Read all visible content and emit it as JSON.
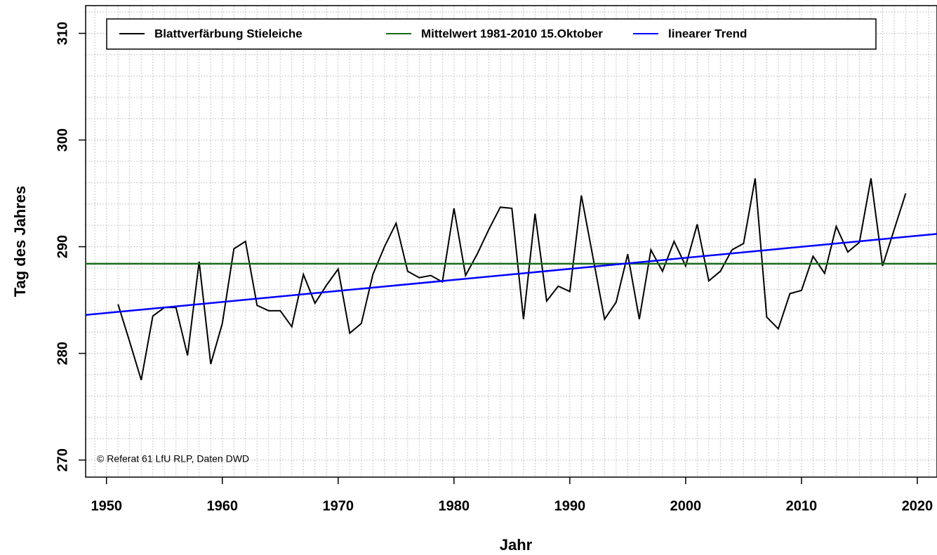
{
  "chart_data": {
    "type": "line",
    "xlabel": "Jahr",
    "ylabel": "Tag des Jahres",
    "annotation": "© Referat 61 LfU RLP, Daten DWD",
    "xlim": [
      1948.2,
      2021.7
    ],
    "ylim": [
      268.4,
      312.6
    ],
    "xticks": [
      1950,
      1960,
      1970,
      1980,
      1990,
      2000,
      2010,
      2020
    ],
    "yticks": [
      270,
      280,
      290,
      300,
      310
    ],
    "minor_xticks": [
      1949,
      1950,
      1951,
      1952,
      1953,
      1954,
      1955,
      1956,
      1957,
      1958,
      1959,
      1960,
      1961,
      1962,
      1963,
      1964,
      1965,
      1966,
      1967,
      1968,
      1969,
      1970,
      1971,
      1972,
      1973,
      1974,
      1975,
      1976,
      1977,
      1978,
      1979,
      1980,
      1981,
      1982,
      1983,
      1984,
      1985,
      1986,
      1987,
      1988,
      1989,
      1990,
      1991,
      1992,
      1993,
      1994,
      1995,
      1996,
      1997,
      1998,
      1999,
      2000,
      2001,
      2002,
      2003,
      2004,
      2005,
      2006,
      2007,
      2008,
      2009,
      2010,
      2011,
      2012,
      2013,
      2014,
      2015,
      2016,
      2017,
      2018,
      2019,
      2020,
      2021
    ],
    "minor_yticks": [
      270,
      272,
      274,
      276,
      278,
      280,
      282,
      284,
      286,
      288,
      290,
      292,
      294,
      296,
      298,
      300,
      302,
      304,
      306,
      308,
      310,
      312
    ],
    "grid": true,
    "legend": "top",
    "series": [
      {
        "name": "Blattverfärbung Stieleiche",
        "color": "#000000",
        "x": [
          1951,
          1952,
          1953,
          1954,
          1955,
          1956,
          1957,
          1958,
          1959,
          1960,
          1961,
          1962,
          1963,
          1964,
          1965,
          1966,
          1967,
          1968,
          1969,
          1970,
          1971,
          1972,
          1973,
          1974,
          1975,
          1976,
          1977,
          1978,
          1979,
          1980,
          1981,
          1982,
          1983,
          1984,
          1985,
          1986,
          1987,
          1988,
          1989,
          1990,
          1991,
          1992,
          1993,
          1994,
          1995,
          1996,
          1997,
          1998,
          1999,
          2000,
          2001,
          2002,
          2003,
          2004,
          2005,
          2006,
          2007,
          2008,
          2009,
          2010,
          2011,
          2012,
          2013,
          2014,
          2015,
          2016,
          2017,
          2018,
          2019
        ],
        "values": [
          284.6,
          281.1,
          277.5,
          283.5,
          284.3,
          284.3,
          279.8,
          288.6,
          279.0,
          282.8,
          289.8,
          290.5,
          284.5,
          284.0,
          284.0,
          282.5,
          287.4,
          284.7,
          286.4,
          287.9,
          281.9,
          282.8,
          287.4,
          290.0,
          292.2,
          287.7,
          287.1,
          287.3,
          286.7,
          293.6,
          287.3,
          289.3,
          291.6,
          293.7,
          293.6,
          283.2,
          293.1,
          284.9,
          286.3,
          285.8,
          294.8,
          289.0,
          283.2,
          284.8,
          289.3,
          283.2,
          289.7,
          287.7,
          290.5,
          288.2,
          292.1,
          286.8,
          287.7,
          289.7,
          290.3,
          296.4,
          283.4,
          282.3,
          285.6,
          285.9,
          289.1,
          287.5,
          291.9,
          289.5,
          290.4,
          296.4,
          288.2,
          291.6,
          295.0
        ]
      },
      {
        "name": "Mittelwert 1981-2010 15.Oktober",
        "color": "#1a6b1a",
        "x": [
          1948.2,
          2021.7
        ],
        "values": [
          288.4,
          288.4
        ]
      },
      {
        "name": "linearer Trend",
        "color": "#0000ff",
        "x": [
          1948.2,
          2021.7
        ],
        "values": [
          283.6,
          291.2
        ]
      }
    ]
  }
}
